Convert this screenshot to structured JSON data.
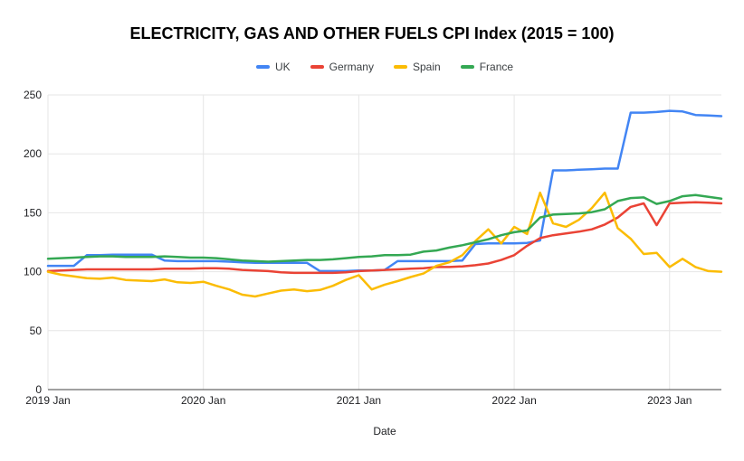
{
  "title": "ELECTRICITY, GAS AND OTHER FUELS CPI Index (2015 = 100)",
  "chart_data": {
    "type": "line",
    "title": "ELECTRICITY, GAS AND OTHER FUELS CPI Index (2015 = 100)",
    "xlabel": "Date",
    "ylabel": "",
    "ylim": [
      0,
      250
    ],
    "yticks": [
      0,
      50,
      100,
      150,
      200,
      250
    ],
    "grid": true,
    "legend_position": "top",
    "x_unit": "month",
    "x_range": "2019 Jan - 2023 May",
    "n_points": 53,
    "x_tick_labels": [
      "2019 Jan",
      "2020 Jan",
      "2021 Jan",
      "2022 Jan",
      "2023 Jan"
    ],
    "x_tick_positions": [
      0,
      12,
      24,
      36,
      48
    ],
    "axis_color": "#424242",
    "gridline_color": "#e6e6e6",
    "series": [
      {
        "name": "UK",
        "color": "#4285f4",
        "values": [
          105,
          105,
          105,
          114,
          114,
          114.5,
          114.5,
          114.5,
          114.5,
          109.5,
          109,
          109,
          109,
          109,
          108.5,
          108,
          107.5,
          107.5,
          107.5,
          107.5,
          107.5,
          100.5,
          100.5,
          100.5,
          101,
          101,
          101.5,
          109,
          109,
          109,
          109,
          109,
          109.5,
          123.5,
          124,
          124,
          124,
          124.5,
          126.5,
          186,
          186,
          186.5,
          187,
          187.5,
          187.5,
          235,
          235,
          235.5,
          236.5,
          236,
          233,
          232.5,
          232
        ]
      },
      {
        "name": "Germany",
        "color": "#ea4335",
        "values": [
          100.5,
          101,
          101.5,
          102,
          102,
          102,
          102,
          102,
          102,
          102.5,
          102.5,
          102.5,
          103,
          103,
          102.5,
          101.5,
          101,
          100.5,
          99.5,
          99,
          99,
          99,
          99,
          99.5,
          100.5,
          101,
          101.5,
          102,
          102.5,
          103,
          104,
          104,
          104.5,
          105.5,
          107,
          110,
          114,
          122,
          128.5,
          131,
          132.5,
          134,
          136,
          140,
          146,
          155,
          158,
          139.5,
          158,
          158.5,
          159,
          158.5,
          158
        ]
      },
      {
        "name": "Spain",
        "color": "#fbbc04",
        "values": [
          100,
          97.5,
          96,
          94.5,
          94,
          95,
          93,
          92.5,
          92,
          93.5,
          91,
          90.5,
          91.5,
          88,
          85,
          80.5,
          79,
          81.5,
          84,
          85,
          83.5,
          84.5,
          88,
          93,
          97,
          85,
          89,
          92,
          95.5,
          98.5,
          105,
          108,
          114,
          126,
          136,
          124,
          138,
          132,
          167,
          141,
          138,
          144,
          154,
          167,
          137,
          128,
          115,
          116,
          104,
          111,
          104,
          100.5,
          100
        ]
      },
      {
        "name": "France",
        "color": "#34a853",
        "values": [
          111,
          111.5,
          112,
          112.5,
          113,
          113,
          112.5,
          112.5,
          112.5,
          113,
          112.5,
          112,
          112,
          111.5,
          110.5,
          109.5,
          109,
          108.5,
          109,
          109.5,
          110,
          110,
          110.5,
          111.5,
          112.5,
          113,
          114,
          114,
          114.5,
          117,
          118,
          120.5,
          122.5,
          125,
          127.5,
          131,
          133.5,
          135,
          146,
          148.5,
          149,
          149.5,
          150.5,
          153,
          160,
          162.5,
          163,
          157.5,
          160,
          164,
          165,
          163.5,
          162
        ]
      }
    ]
  }
}
